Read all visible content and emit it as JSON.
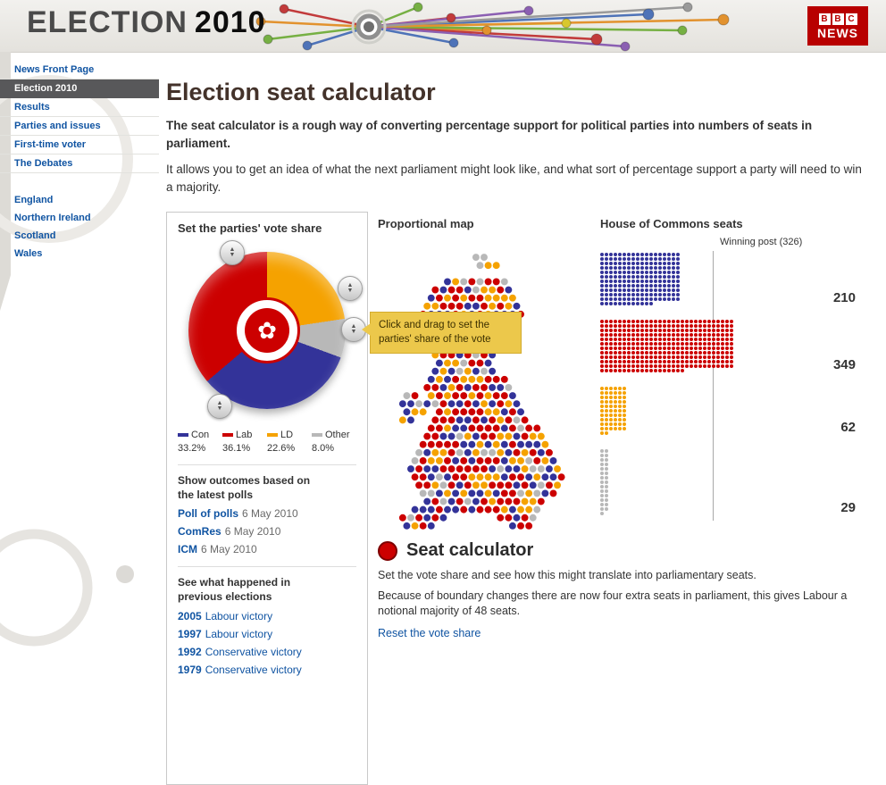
{
  "header": {
    "title_word": "ELECTION",
    "title_year": "2010",
    "bbc_letters": [
      "B",
      "B",
      "C"
    ],
    "bbc_news": "NEWS"
  },
  "sidebar": {
    "items": [
      {
        "label": "News Front Page",
        "selected": false
      },
      {
        "label": "Election 2010",
        "selected": true
      },
      {
        "label": "Results",
        "selected": false
      },
      {
        "label": "Parties and issues",
        "selected": false
      },
      {
        "label": "First-time voter",
        "selected": false
      },
      {
        "label": "The Debates",
        "selected": false
      }
    ],
    "regions": [
      {
        "label": "England"
      },
      {
        "label": "Northern Ireland"
      },
      {
        "label": "Scotland"
      },
      {
        "label": "Wales"
      }
    ]
  },
  "main": {
    "page_title": "Election seat calculator",
    "intro_bold": "The seat calculator is a rough way of converting percentage support for political parties into numbers of seats in parliament.",
    "intro_text": "It allows you to get an idea of what the next parliament might look like, and what sort of percentage support a party will need to win a majority."
  },
  "vote_panel": {
    "title": "Set the parties' vote share",
    "parties": [
      {
        "name": "Con",
        "share": "33.2%",
        "color": "#333399",
        "seats": 210
      },
      {
        "name": "Lab",
        "share": "36.1%",
        "color": "#cc0000",
        "seats": 349
      },
      {
        "name": "LD",
        "share": "22.6%",
        "color": "#f5a200",
        "seats": 62
      },
      {
        "name": "Other",
        "share": "8.0%",
        "color": "#b8b8b8",
        "seats": 29
      }
    ],
    "polls_heading": "Show outcomes based on the latest polls",
    "polls": [
      {
        "label": "Poll of polls",
        "date": "6 May 2010"
      },
      {
        "label": "ComRes",
        "date": "6 May 2010"
      },
      {
        "label": "ICM",
        "date": "6 May 2010"
      }
    ],
    "previous_heading": "See what happened in previous elections",
    "previous": [
      {
        "year": "2005",
        "result": "Labour victory"
      },
      {
        "year": "1997",
        "result": "Labour victory"
      },
      {
        "year": "1992",
        "result": "Conservative victory"
      },
      {
        "year": "1979",
        "result": "Conservative victory"
      }
    ]
  },
  "map_panel": {
    "title": "Proportional map",
    "tooltip": "Click and drag to set the parties' share of the vote"
  },
  "seats_panel": {
    "title": "House of Commons seats",
    "winning_post_label": "Winning post (326)",
    "winning_post_value": 326
  },
  "calculator": {
    "title": "Seat calculator",
    "line1": "Set the vote share and see how this might translate into parliamentary seats.",
    "line2": "Because of boundary changes there are now four extra seats in parliament, this gives Labour a notional majority of 48 seats.",
    "reset_link": "Reset the vote share"
  },
  "chart_data": [
    {
      "type": "pie",
      "title": "Set the parties' vote share",
      "labels": [
        "Con",
        "Lab",
        "LD",
        "Other"
      ],
      "values": [
        33.2,
        36.1,
        22.6,
        8.0
      ],
      "colors": [
        "#333399",
        "#cc0000",
        "#f5a200",
        "#b8b8b8"
      ]
    },
    {
      "type": "bar",
      "title": "House of Commons seats",
      "categories": [
        "Con",
        "Lab",
        "LD",
        "Other"
      ],
      "values": [
        210,
        349,
        62,
        29
      ],
      "annotations": [
        "Winning post (326)"
      ]
    }
  ]
}
